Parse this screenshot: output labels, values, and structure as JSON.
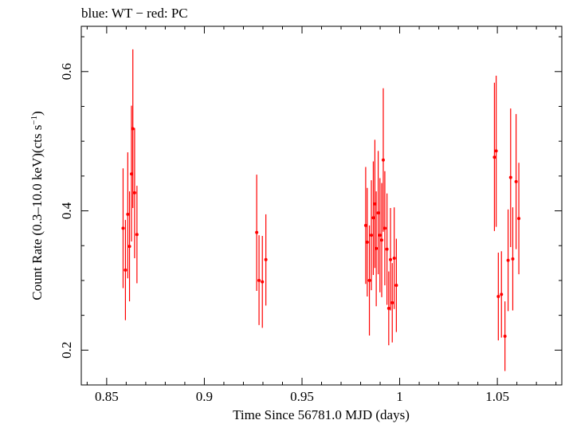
{
  "chart_data": {
    "type": "scatter",
    "title": "blue: WT − red: PC",
    "xlabel": "Time Since 56781.0 MJD (days)",
    "ylabel": "Count Rate (0.3–10.0 keV)(cts s⁻¹)",
    "xlim": [
      0.837,
      1.083
    ],
    "ylim": [
      0.15,
      0.665
    ],
    "x_ticks": [
      {
        "value": 0.85,
        "label": "0.85"
      },
      {
        "value": 0.9,
        "label": "0.9"
      },
      {
        "value": 0.95,
        "label": "0.95"
      },
      {
        "value": 1.0,
        "label": "1"
      },
      {
        "value": 1.05,
        "label": "1.05"
      }
    ],
    "y_ticks": [
      {
        "value": 0.2,
        "label": "0.2"
      },
      {
        "value": 0.4,
        "label": "0.4"
      },
      {
        "value": 0.6,
        "label": "0.6"
      }
    ],
    "grid": false,
    "series": [
      {
        "color": "#ff0000",
        "points": [
          {
            "x": 0.8584,
            "y": 0.375,
            "lo": 0.289,
            "hi": 0.461
          },
          {
            "x": 0.8596,
            "y": 0.315,
            "lo": 0.243,
            "hi": 0.387
          },
          {
            "x": 0.8608,
            "y": 0.395,
            "lo": 0.303,
            "hi": 0.484
          },
          {
            "x": 0.8617,
            "y": 0.349,
            "lo": 0.27,
            "hi": 0.428
          },
          {
            "x": 0.8627,
            "y": 0.453,
            "lo": 0.356,
            "hi": 0.551
          },
          {
            "x": 0.8634,
            "y": 0.518,
            "lo": 0.404,
            "hi": 0.632
          },
          {
            "x": 0.8643,
            "y": 0.426,
            "lo": 0.332,
            "hi": 0.519
          },
          {
            "x": 0.8655,
            "y": 0.366,
            "lo": 0.296,
            "hi": 0.436
          },
          {
            "x": 0.9268,
            "y": 0.369,
            "lo": 0.285,
            "hi": 0.452
          },
          {
            "x": 0.928,
            "y": 0.3,
            "lo": 0.236,
            "hi": 0.365
          },
          {
            "x": 0.9297,
            "y": 0.298,
            "lo": 0.232,
            "hi": 0.364
          },
          {
            "x": 0.9315,
            "y": 0.33,
            "lo": 0.264,
            "hi": 0.395
          },
          {
            "x": 0.9826,
            "y": 0.379,
            "lo": 0.295,
            "hi": 0.463
          },
          {
            "x": 0.9834,
            "y": 0.355,
            "lo": 0.277,
            "hi": 0.433
          },
          {
            "x": 0.9845,
            "y": 0.3,
            "lo": 0.221,
            "hi": 0.379
          },
          {
            "x": 0.9855,
            "y": 0.365,
            "lo": 0.286,
            "hi": 0.444
          },
          {
            "x": 0.9865,
            "y": 0.39,
            "lo": 0.308,
            "hi": 0.471
          },
          {
            "x": 0.9873,
            "y": 0.41,
            "lo": 0.318,
            "hi": 0.502
          },
          {
            "x": 0.988,
            "y": 0.346,
            "lo": 0.263,
            "hi": 0.428
          },
          {
            "x": 0.989,
            "y": 0.397,
            "lo": 0.309,
            "hi": 0.486
          },
          {
            "x": 0.9899,
            "y": 0.365,
            "lo": 0.283,
            "hi": 0.447
          },
          {
            "x": 0.9908,
            "y": 0.358,
            "lo": 0.276,
            "hi": 0.44
          },
          {
            "x": 0.9916,
            "y": 0.473,
            "lo": 0.37,
            "hi": 0.576
          },
          {
            "x": 0.9924,
            "y": 0.375,
            "lo": 0.293,
            "hi": 0.457
          },
          {
            "x": 0.9935,
            "y": 0.345,
            "lo": 0.265,
            "hi": 0.425
          },
          {
            "x": 0.9944,
            "y": 0.26,
            "lo": 0.207,
            "hi": 0.313
          },
          {
            "x": 0.9953,
            "y": 0.33,
            "lo": 0.257,
            "hi": 0.404
          },
          {
            "x": 0.9962,
            "y": 0.268,
            "lo": 0.211,
            "hi": 0.325
          },
          {
            "x": 0.9972,
            "y": 0.332,
            "lo": 0.259,
            "hi": 0.405
          },
          {
            "x": 0.9983,
            "y": 0.293,
            "lo": 0.226,
            "hi": 0.36
          },
          {
            "x": 1.0485,
            "y": 0.477,
            "lo": 0.371,
            "hi": 0.584
          },
          {
            "x": 1.0494,
            "y": 0.486,
            "lo": 0.377,
            "hi": 0.594
          },
          {
            "x": 1.0505,
            "y": 0.277,
            "lo": 0.214,
            "hi": 0.34
          },
          {
            "x": 1.0521,
            "y": 0.28,
            "lo": 0.218,
            "hi": 0.342
          },
          {
            "x": 1.0539,
            "y": 0.22,
            "lo": 0.17,
            "hi": 0.27
          },
          {
            "x": 1.0555,
            "y": 0.329,
            "lo": 0.256,
            "hi": 0.402
          },
          {
            "x": 1.0568,
            "y": 0.448,
            "lo": 0.348,
            "hi": 0.547
          },
          {
            "x": 1.0579,
            "y": 0.331,
            "lo": 0.257,
            "hi": 0.405
          },
          {
            "x": 1.0596,
            "y": 0.442,
            "lo": 0.345,
            "hi": 0.539
          },
          {
            "x": 1.061,
            "y": 0.389,
            "lo": 0.309,
            "hi": 0.469
          }
        ]
      }
    ]
  }
}
